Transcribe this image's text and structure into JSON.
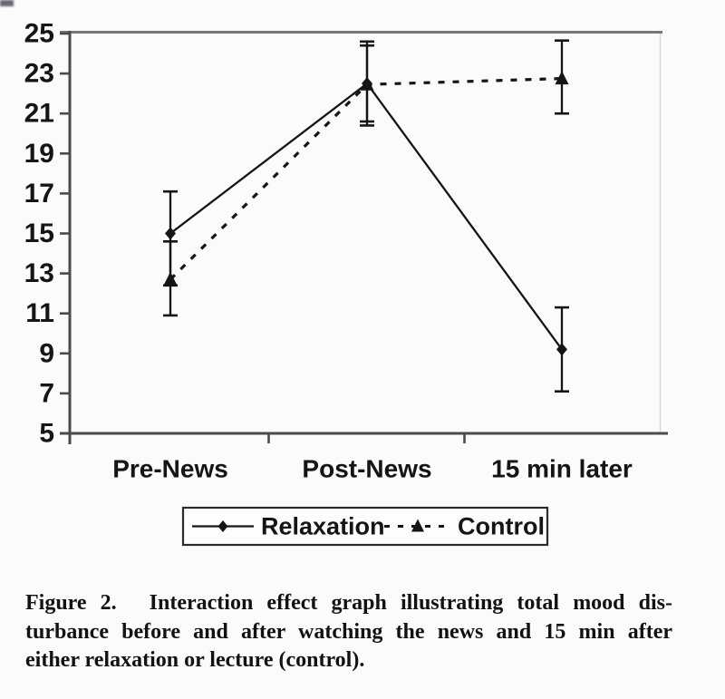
{
  "colors": {
    "ink": "#151515",
    "axis": "#4b4b4f",
    "plot_top_border": "#77777e",
    "plot_right_border": "#d6d6dd",
    "background": "#fbfbfc",
    "legend_border": "#2b2b2b"
  },
  "chart_data": {
    "type": "line",
    "title": "",
    "xlabel": "",
    "ylabel": "",
    "categories": [
      "Pre-News",
      "Post-News",
      "15 min later"
    ],
    "series": [
      {
        "name": "Relaxation",
        "marker": "diamond-marker",
        "line_style": "solid",
        "values": [
          15.0,
          22.5,
          9.2
        ],
        "error_low": [
          12.4,
          20.6,
          7.1
        ],
        "error_high": [
          17.1,
          24.6,
          11.3
        ]
      },
      {
        "name": "Control",
        "marker": "triangle-marker",
        "line_style": "dashed",
        "values": [
          12.7,
          22.45,
          22.75
        ],
        "error_low": [
          10.9,
          20.4,
          21.0
        ],
        "error_high": [
          14.6,
          24.4,
          24.65
        ]
      }
    ],
    "ylim": [
      5,
      25
    ],
    "yticks": [
      25,
      23,
      21,
      19,
      17,
      15,
      13,
      11,
      9,
      7,
      5
    ],
    "grid": false,
    "legend_position": "bottom",
    "error_bars": true
  },
  "caption": {
    "lines": [
      "Figure 2.  Interaction effect graph illustrating total mood dis-",
      "turbance before and after watching the news and 15 min after",
      "either relaxation or lecture (control)."
    ]
  }
}
